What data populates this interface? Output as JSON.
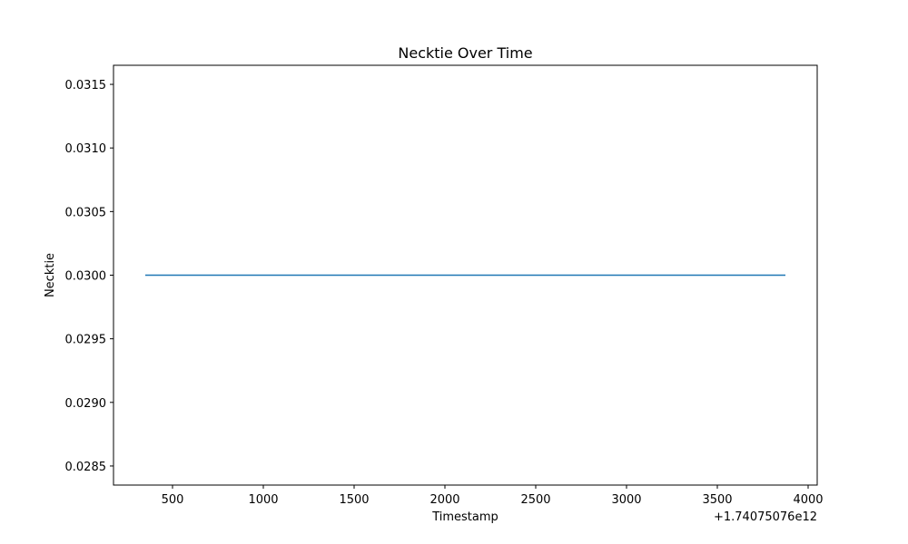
{
  "chart_data": {
    "type": "line",
    "title": "Necktie Over Time",
    "xlabel": "Timestamp",
    "ylabel": "Necktie",
    "x_offset_label": "+1.74075076e12",
    "xlim": [
      175,
      4050
    ],
    "ylim": [
      0.02835,
      0.03165
    ],
    "x_ticks": [
      500,
      1000,
      1500,
      2000,
      2500,
      3000,
      3500,
      4000
    ],
    "x_tick_labels": [
      "500",
      "1000",
      "1500",
      "2000",
      "2500",
      "3000",
      "3500",
      "4000"
    ],
    "y_ticks": [
      0.0285,
      0.029,
      0.0295,
      0.03,
      0.0305,
      0.031,
      0.0315
    ],
    "y_tick_labels": [
      "0.0285",
      "0.0290",
      "0.0295",
      "0.0300",
      "0.0305",
      "0.0310",
      "0.0315"
    ],
    "grid": false,
    "series": [
      {
        "color": "#1f77b4",
        "x": [
          350,
          3875
        ],
        "y": [
          0.03,
          0.03
        ]
      }
    ]
  }
}
